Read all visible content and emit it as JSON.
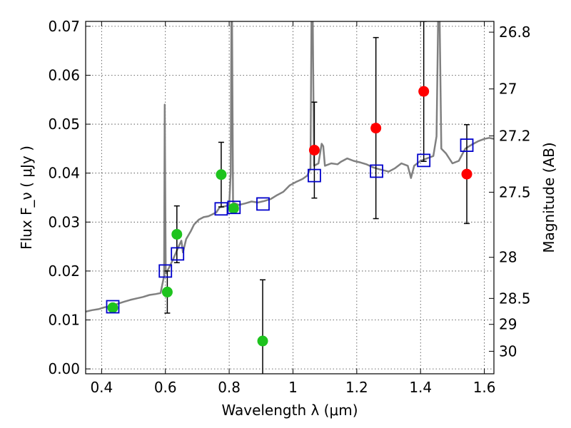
{
  "chart_data": {
    "type": "scatter",
    "xlabel": "Wavelength  λ (μm)",
    "ylabel": "Flux  F_ν  ( μJy )",
    "ylabel_right": "Magnitude (AB)",
    "xlim": [
      0.35,
      1.63
    ],
    "ylim": [
      -0.001,
      0.071
    ],
    "grid": true,
    "x_ticks": [
      0.4,
      0.6,
      0.8,
      1.0,
      1.2,
      1.4,
      1.6
    ],
    "x_tick_labels": [
      "0.4",
      "0.6",
      "0.8",
      "1",
      "1.2",
      "1.4",
      "1.6"
    ],
    "y_ticks": [
      0.0,
      0.01,
      0.02,
      0.03,
      0.04,
      0.05,
      0.06,
      0.07
    ],
    "y_tick_labels": [
      "0.00",
      "0.01",
      "0.02",
      "0.03",
      "0.04",
      "0.05",
      "0.06",
      "0.07"
    ],
    "right_ticks": [
      {
        "label": "26.8",
        "flux": 0.0688
      },
      {
        "label": "27",
        "flux": 0.0572
      },
      {
        "label": "27.2",
        "flux": 0.0476
      },
      {
        "label": "27.5",
        "flux": 0.0361
      },
      {
        "label": "28",
        "flux": 0.0228
      },
      {
        "label": "28.5",
        "flux": 0.0144
      },
      {
        "label": "29",
        "flux": 0.0091
      },
      {
        "label": "30",
        "flux": 0.0036
      }
    ],
    "series": [
      {
        "type": "line",
        "color": "#808080",
        "points": [
          [
            0.35,
            0.0117
          ],
          [
            0.37,
            0.012
          ],
          [
            0.39,
            0.0122
          ],
          [
            0.41,
            0.0126
          ],
          [
            0.43,
            0.0128
          ],
          [
            0.45,
            0.0133
          ],
          [
            0.47,
            0.0137
          ],
          [
            0.49,
            0.0141
          ],
          [
            0.51,
            0.0144
          ],
          [
            0.53,
            0.0147
          ],
          [
            0.55,
            0.0151
          ],
          [
            0.57,
            0.0153
          ],
          [
            0.585,
            0.0155
          ],
          [
            0.596,
            0.019
          ],
          [
            0.598,
            0.054
          ],
          [
            0.601,
            0.0195
          ],
          [
            0.61,
            0.0205
          ],
          [
            0.625,
            0.0225
          ],
          [
            0.64,
            0.0248
          ],
          [
            0.65,
            0.0262
          ],
          [
            0.655,
            0.0238
          ],
          [
            0.665,
            0.0265
          ],
          [
            0.68,
            0.0282
          ],
          [
            0.69,
            0.0295
          ],
          [
            0.705,
            0.0305
          ],
          [
            0.72,
            0.031
          ],
          [
            0.735,
            0.0312
          ],
          [
            0.745,
            0.0315
          ],
          [
            0.76,
            0.032
          ],
          [
            0.77,
            0.033
          ],
          [
            0.785,
            0.0332
          ],
          [
            0.8,
            0.0335
          ],
          [
            0.805,
            0.04
          ],
          [
            0.807,
            0.071
          ],
          [
            0.809,
            0.071
          ],
          [
            0.812,
            0.034
          ],
          [
            0.83,
            0.0335
          ],
          [
            0.85,
            0.0338
          ],
          [
            0.87,
            0.0342
          ],
          [
            0.89,
            0.034
          ],
          [
            0.91,
            0.0343
          ],
          [
            0.93,
            0.0347
          ],
          [
            0.95,
            0.0355
          ],
          [
            0.97,
            0.0362
          ],
          [
            0.99,
            0.0375
          ],
          [
            1.01,
            0.0382
          ],
          [
            1.03,
            0.0388
          ],
          [
            1.045,
            0.0395
          ],
          [
            1.055,
            0.041
          ],
          [
            1.058,
            0.071
          ],
          [
            1.062,
            0.071
          ],
          [
            1.066,
            0.0415
          ],
          [
            1.08,
            0.042
          ],
          [
            1.09,
            0.046
          ],
          [
            1.095,
            0.0455
          ],
          [
            1.1,
            0.0415
          ],
          [
            1.12,
            0.042
          ],
          [
            1.14,
            0.0418
          ],
          [
            1.15,
            0.0423
          ],
          [
            1.17,
            0.043
          ],
          [
            1.19,
            0.0425
          ],
          [
            1.21,
            0.0422
          ],
          [
            1.23,
            0.0418
          ],
          [
            1.25,
            0.0412
          ],
          [
            1.27,
            0.0408
          ],
          [
            1.3,
            0.0403
          ],
          [
            1.32,
            0.041
          ],
          [
            1.34,
            0.042
          ],
          [
            1.36,
            0.0415
          ],
          [
            1.37,
            0.039
          ],
          [
            1.38,
            0.0415
          ],
          [
            1.4,
            0.0425
          ],
          [
            1.42,
            0.043
          ],
          [
            1.44,
            0.0435
          ],
          [
            1.45,
            0.0475
          ],
          [
            1.455,
            0.071
          ],
          [
            1.46,
            0.071
          ],
          [
            1.465,
            0.045
          ],
          [
            1.48,
            0.044
          ],
          [
            1.5,
            0.042
          ],
          [
            1.52,
            0.0425
          ],
          [
            1.54,
            0.045
          ],
          [
            1.56,
            0.0458
          ],
          [
            1.58,
            0.0465
          ],
          [
            1.6,
            0.047
          ],
          [
            1.615,
            0.0472
          ],
          [
            1.63,
            0.047
          ]
        ]
      },
      {
        "type": "scatter",
        "marker": "circle",
        "color": "#1ec31e",
        "points": [
          {
            "x": 0.435,
            "y": 0.0125,
            "err": 0.0
          },
          {
            "x": 0.606,
            "y": 0.0157,
            "err": 0.0043
          },
          {
            "x": 0.636,
            "y": 0.0275,
            "err": 0.0058
          },
          {
            "x": 0.775,
            "y": 0.0397,
            "err": 0.0066
          },
          {
            "x": 0.814,
            "y": 0.0328,
            "err": 0.0
          },
          {
            "x": 0.905,
            "y": 0.0057,
            "err": 0.0125
          }
        ]
      },
      {
        "type": "scatter",
        "marker": "circle",
        "color": "#ff0000",
        "points": [
          {
            "x": 1.067,
            "y": 0.0447,
            "err": 0.0098
          },
          {
            "x": 1.26,
            "y": 0.0492,
            "err": 0.0185
          },
          {
            "x": 1.41,
            "y": 0.0567,
            "err": 0.0143
          },
          {
            "x": 1.545,
            "y": 0.0398,
            "err": 0.0101
          }
        ]
      },
      {
        "type": "scatter",
        "marker": "square-open",
        "color": "#0000cc",
        "points": [
          [
            0.435,
            0.0127
          ],
          [
            0.6,
            0.02
          ],
          [
            0.638,
            0.0235
          ],
          [
            0.775,
            0.0327
          ],
          [
            0.815,
            0.033
          ],
          [
            0.906,
            0.0337
          ],
          [
            1.067,
            0.0395
          ],
          [
            1.262,
            0.0404
          ],
          [
            1.41,
            0.0426
          ],
          [
            1.545,
            0.0457
          ]
        ]
      }
    ]
  }
}
